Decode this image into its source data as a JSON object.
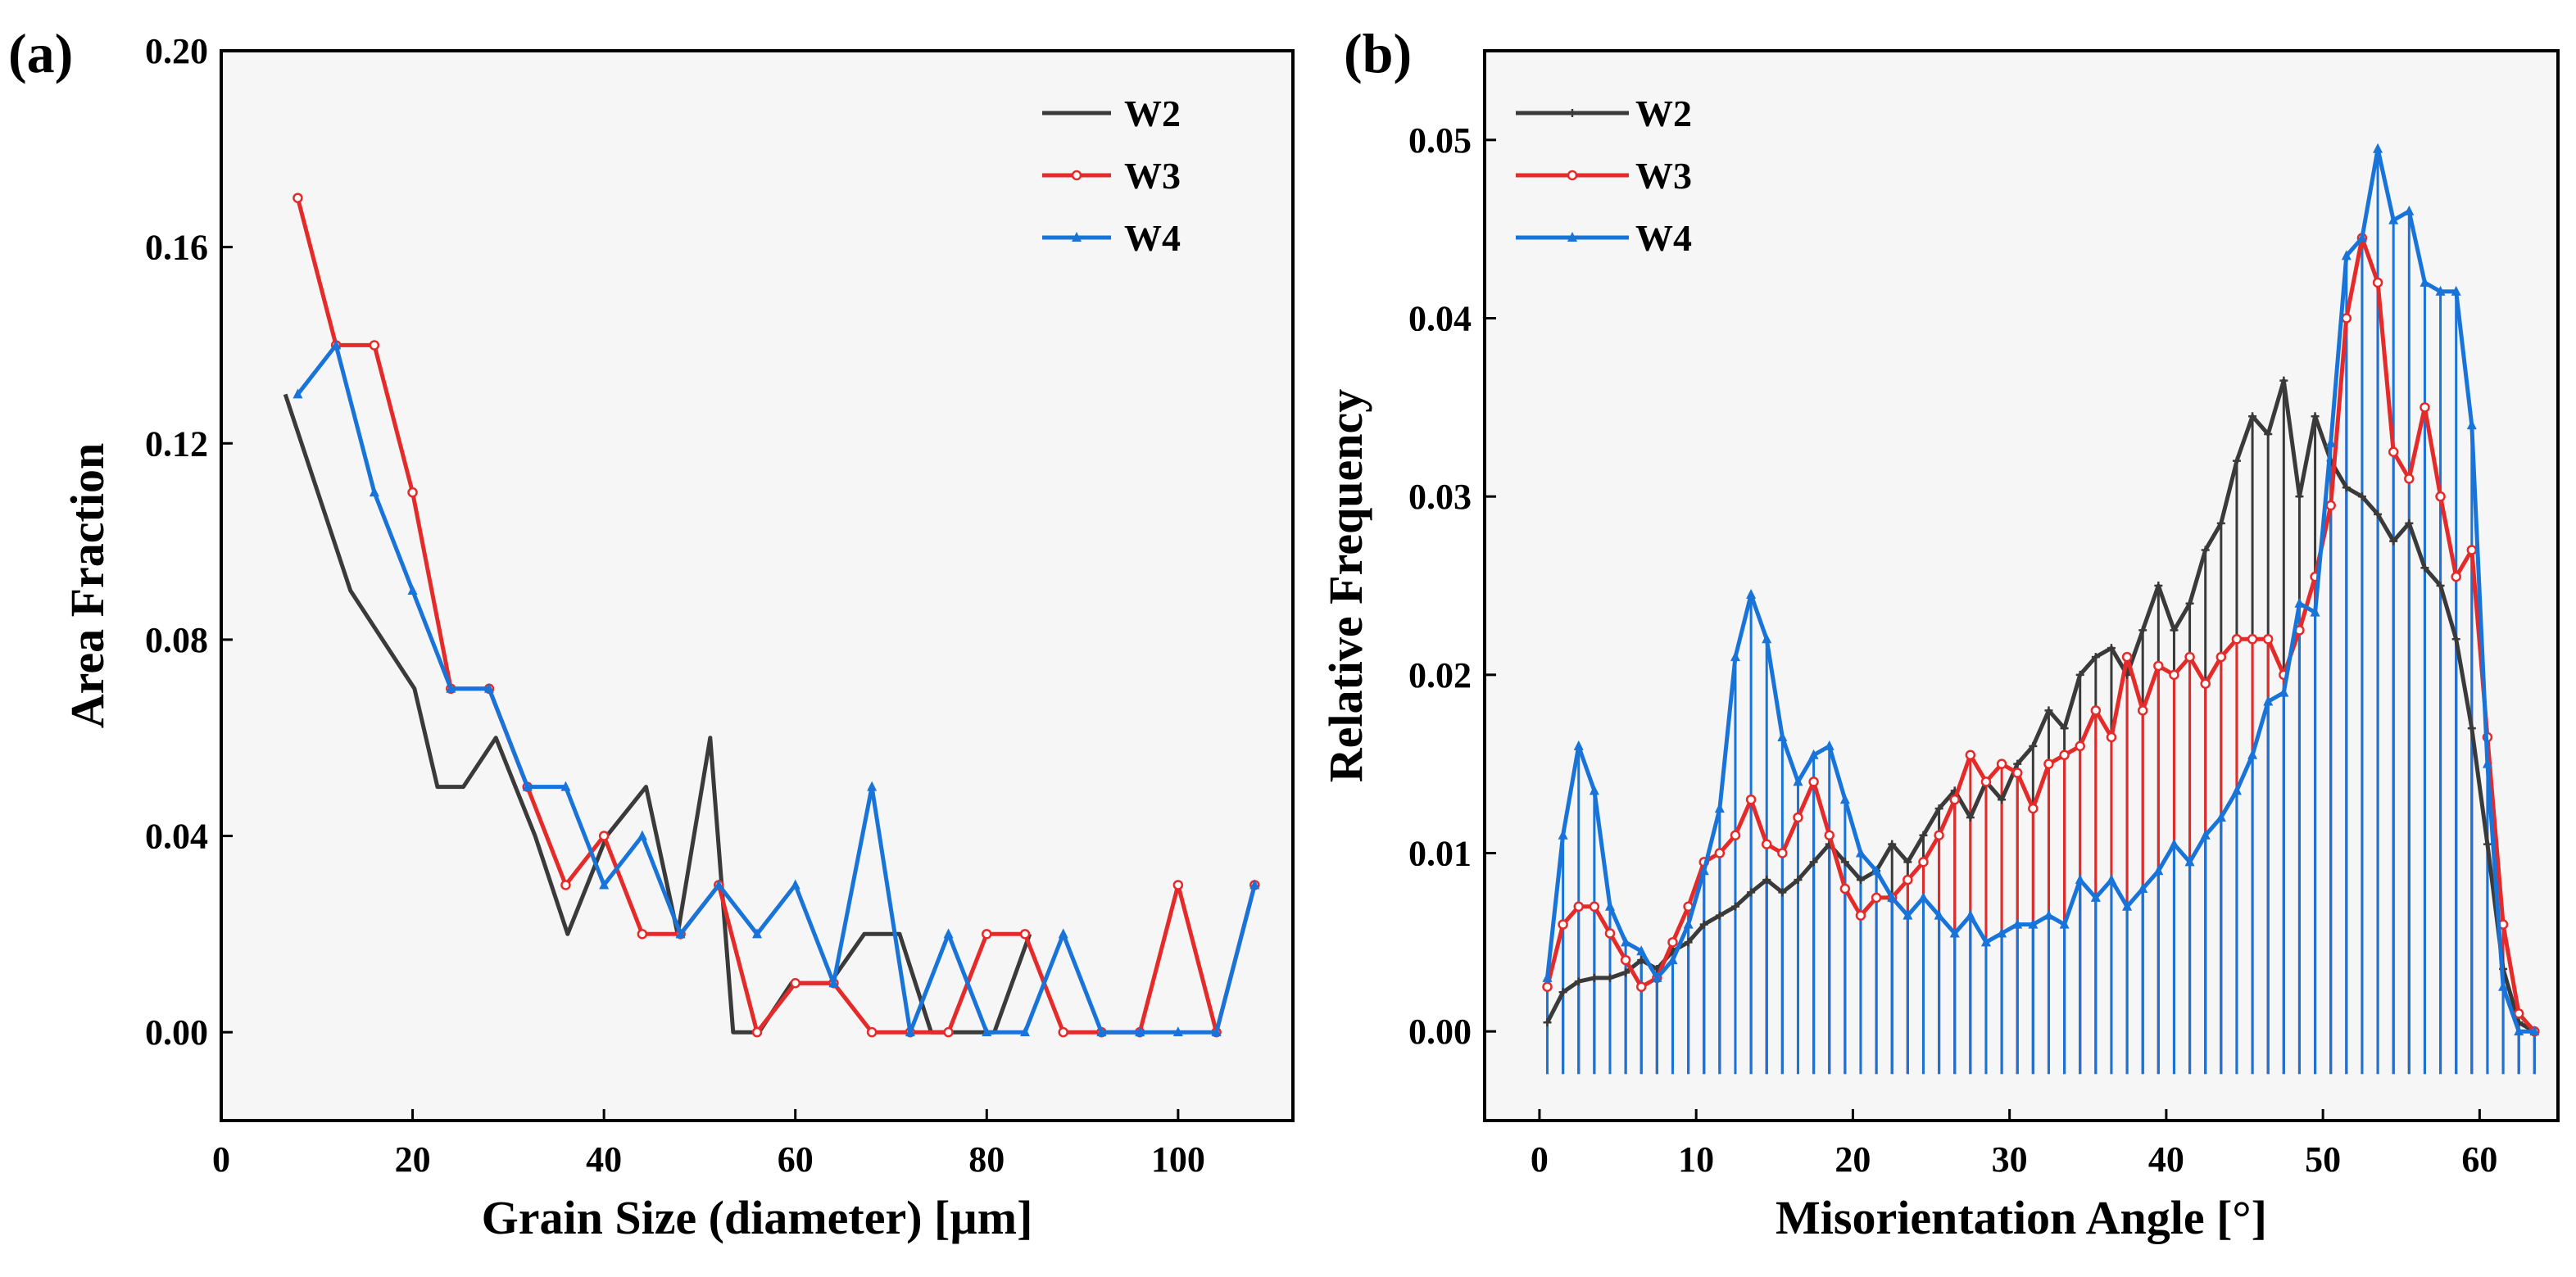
{
  "chart_data": [
    {
      "type": "line",
      "panel_label": "(a)",
      "xlabel": "Grain Size (diameter) [µm]",
      "ylabel": "Area Fraction",
      "xlim": [
        0,
        112
      ],
      "ylim": [
        -0.018,
        0.2
      ],
      "xticks": [
        0,
        20,
        40,
        60,
        80,
        100
      ],
      "xtick_labels": [
        "0",
        "20",
        "40",
        "60",
        "80",
        "100"
      ],
      "yticks": [
        0.0,
        0.04,
        0.08,
        0.12,
        0.16,
        0.2
      ],
      "ytick_labels": [
        "0.00",
        "0.04",
        "0.08",
        "0.12",
        "0.16",
        "0.20"
      ],
      "legend_position": "top-right",
      "series": [
        {
          "name": "W2",
          "color": "#3a3a3a",
          "marker": "none",
          "x": [
            6.7,
            13.5,
            20.2,
            22.6,
            25.3,
            28.7,
            32.8,
            36.2,
            40.3,
            44.4,
            47.7,
            51.1,
            53.5,
            56.2,
            59.6,
            63.6,
            67.2,
            70.9,
            74.2,
            77.6,
            80.8,
            84.5
          ],
          "y": [
            0.13,
            0.09,
            0.07,
            0.05,
            0.05,
            0.06,
            0.04,
            0.02,
            0.04,
            0.05,
            0.02,
            0.06,
            0.0,
            0.0,
            0.01,
            0.01,
            0.02,
            0.02,
            0.0,
            0.0,
            0.0,
            0.02
          ]
        },
        {
          "name": "W3",
          "color": "#e52a2a",
          "marker": "circle",
          "x": [
            8.0,
            12.0,
            16.0,
            20.0,
            24.0,
            28.0,
            32.0,
            36.0,
            40.0,
            44.0,
            48.0,
            52.0,
            56.0,
            60.0,
            64.0,
            68.0,
            72.0,
            76.0,
            80.0,
            84.0,
            88.0,
            92.0,
            96.0,
            100.0,
            104.0,
            108.0
          ],
          "y": [
            0.17,
            0.14,
            0.14,
            0.11,
            0.07,
            0.07,
            0.05,
            0.03,
            0.04,
            0.02,
            0.02,
            0.03,
            0.0,
            0.01,
            0.01,
            0.0,
            0.0,
            0.0,
            0.02,
            0.02,
            0.0,
            0.0,
            0.0,
            0.03,
            0.0,
            0.03
          ]
        },
        {
          "name": "W4",
          "color": "#1874d8",
          "marker": "triangle",
          "x": [
            8.0,
            12.0,
            16.0,
            20.0,
            24.0,
            28.0,
            32.0,
            36.0,
            40.0,
            44.0,
            48.0,
            52.0,
            56.0,
            60.0,
            64.0,
            68.0,
            72.0,
            76.0,
            80.0,
            84.0,
            88.0,
            92.0,
            96.0,
            100.0,
            104.0,
            108.0
          ],
          "y": [
            0.13,
            0.14,
            0.11,
            0.09,
            0.07,
            0.07,
            0.05,
            0.05,
            0.03,
            0.04,
            0.02,
            0.03,
            0.02,
            0.03,
            0.01,
            0.05,
            0.0,
            0.02,
            0.0,
            0.0,
            0.02,
            0.0,
            0.0,
            0.0,
            0.0,
            0.03
          ]
        }
      ]
    },
    {
      "type": "line",
      "panel_label": "(b)",
      "xlabel": "Misorientation Angle [°]",
      "ylabel": "Relative Frequency",
      "xlim": [
        -3.5,
        65
      ],
      "ylim": [
        -0.005,
        0.055
      ],
      "xticks": [
        0,
        10,
        20,
        30,
        40,
        50,
        60
      ],
      "xtick_labels": [
        "0",
        "10",
        "20",
        "30",
        "40",
        "50",
        "60"
      ],
      "yticks": [
        0.0,
        0.01,
        0.02,
        0.03,
        0.04,
        0.05
      ],
      "ytick_labels": [
        "0.00",
        "0.01",
        "0.02",
        "0.03",
        "0.04",
        "0.05"
      ],
      "legend_position": "top-left",
      "series": [
        {
          "name": "W2",
          "color": "#3a3a3a",
          "marker": "plus",
          "x": [
            0.5,
            1.5,
            2.5,
            3.5,
            4.5,
            5.5,
            6.5,
            7.5,
            8.5,
            9.5,
            10.5,
            11.5,
            12.5,
            13.5,
            14.5,
            15.5,
            16.5,
            17.5,
            18.5,
            19.5,
            20.5,
            21.5,
            22.5,
            23.5,
            24.5,
            25.5,
            26.5,
            27.5,
            28.5,
            29.5,
            30.5,
            31.5,
            32.5,
            33.5,
            34.5,
            35.5,
            36.5,
            37.5,
            38.5,
            39.5,
            40.5,
            41.5,
            42.5,
            43.5,
            44.5,
            45.5,
            46.5,
            47.5,
            48.5,
            49.5,
            50.5,
            51.5,
            52.5,
            53.5,
            54.5,
            55.5,
            56.5,
            57.5,
            58.5,
            59.5,
            60.5,
            61.5,
            62.5,
            63.5
          ],
          "y": [
            0.0005,
            0.0022,
            0.0028,
            0.003,
            0.003,
            0.0033,
            0.004,
            0.0035,
            0.0045,
            0.005,
            0.006,
            0.0065,
            0.007,
            0.0078,
            0.0085,
            0.0078,
            0.0085,
            0.0095,
            0.0105,
            0.0095,
            0.0085,
            0.009,
            0.0105,
            0.0095,
            0.011,
            0.0125,
            0.0135,
            0.012,
            0.014,
            0.013,
            0.015,
            0.016,
            0.018,
            0.017,
            0.02,
            0.021,
            0.0215,
            0.02,
            0.0225,
            0.025,
            0.0225,
            0.024,
            0.027,
            0.0285,
            0.032,
            0.0345,
            0.0335,
            0.0365,
            0.03,
            0.0345,
            0.032,
            0.0305,
            0.03,
            0.029,
            0.0275,
            0.0285,
            0.026,
            0.025,
            0.022,
            0.017,
            0.0105,
            0.0035,
            0.0005,
            0.0
          ]
        },
        {
          "name": "W3",
          "color": "#e52a2a",
          "marker": "circle",
          "x": [
            0.5,
            1.5,
            2.5,
            3.5,
            4.5,
            5.5,
            6.5,
            7.5,
            8.5,
            9.5,
            10.5,
            11.5,
            12.5,
            13.5,
            14.5,
            15.5,
            16.5,
            17.5,
            18.5,
            19.5,
            20.5,
            21.5,
            22.5,
            23.5,
            24.5,
            25.5,
            26.5,
            27.5,
            28.5,
            29.5,
            30.5,
            31.5,
            32.5,
            33.5,
            34.5,
            35.5,
            36.5,
            37.5,
            38.5,
            39.5,
            40.5,
            41.5,
            42.5,
            43.5,
            44.5,
            45.5,
            46.5,
            47.5,
            48.5,
            49.5,
            50.5,
            51.5,
            52.5,
            53.5,
            54.5,
            55.5,
            56.5,
            57.5,
            58.5,
            59.5,
            60.5,
            61.5,
            62.5,
            63.5
          ],
          "y": [
            0.0025,
            0.006,
            0.007,
            0.007,
            0.0055,
            0.004,
            0.0025,
            0.003,
            0.005,
            0.007,
            0.0095,
            0.01,
            0.011,
            0.013,
            0.0105,
            0.01,
            0.012,
            0.014,
            0.011,
            0.008,
            0.0065,
            0.0075,
            0.0075,
            0.0085,
            0.0095,
            0.011,
            0.013,
            0.0155,
            0.014,
            0.015,
            0.0145,
            0.0125,
            0.015,
            0.0155,
            0.016,
            0.018,
            0.0165,
            0.021,
            0.018,
            0.0205,
            0.02,
            0.021,
            0.0195,
            0.021,
            0.022,
            0.022,
            0.022,
            0.02,
            0.0225,
            0.0255,
            0.0295,
            0.04,
            0.0445,
            0.042,
            0.0325,
            0.031,
            0.035,
            0.03,
            0.0255,
            0.027,
            0.0165,
            0.006,
            0.001,
            0.0
          ]
        },
        {
          "name": "W4",
          "color": "#1874d8",
          "marker": "triangle",
          "x": [
            0.5,
            1.5,
            2.5,
            3.5,
            4.5,
            5.5,
            6.5,
            7.5,
            8.5,
            9.5,
            10.5,
            11.5,
            12.5,
            13.5,
            14.5,
            15.5,
            16.5,
            17.5,
            18.5,
            19.5,
            20.5,
            21.5,
            22.5,
            23.5,
            24.5,
            25.5,
            26.5,
            27.5,
            28.5,
            29.5,
            30.5,
            31.5,
            32.5,
            33.5,
            34.5,
            35.5,
            36.5,
            37.5,
            38.5,
            39.5,
            40.5,
            41.5,
            42.5,
            43.5,
            44.5,
            45.5,
            46.5,
            47.5,
            48.5,
            49.5,
            50.5,
            51.5,
            52.5,
            53.5,
            54.5,
            55.5,
            56.5,
            57.5,
            58.5,
            59.5,
            60.5,
            61.5,
            62.5,
            63.5
          ],
          "y": [
            0.003,
            0.011,
            0.016,
            0.0135,
            0.007,
            0.005,
            0.0045,
            0.003,
            0.004,
            0.006,
            0.009,
            0.0125,
            0.021,
            0.0245,
            0.022,
            0.0165,
            0.014,
            0.0155,
            0.016,
            0.013,
            0.01,
            0.009,
            0.0075,
            0.0065,
            0.0075,
            0.0065,
            0.0055,
            0.0065,
            0.005,
            0.0055,
            0.006,
            0.006,
            0.0065,
            0.006,
            0.0085,
            0.0075,
            0.0085,
            0.007,
            0.008,
            0.009,
            0.0105,
            0.0095,
            0.011,
            0.012,
            0.0135,
            0.0155,
            0.0185,
            0.019,
            0.024,
            0.0235,
            0.033,
            0.0435,
            0.0445,
            0.0495,
            0.0455,
            0.046,
            0.042,
            0.0415,
            0.0415,
            0.034,
            0.015,
            0.0025,
            0.0,
            0.0
          ]
        }
      ]
    }
  ]
}
